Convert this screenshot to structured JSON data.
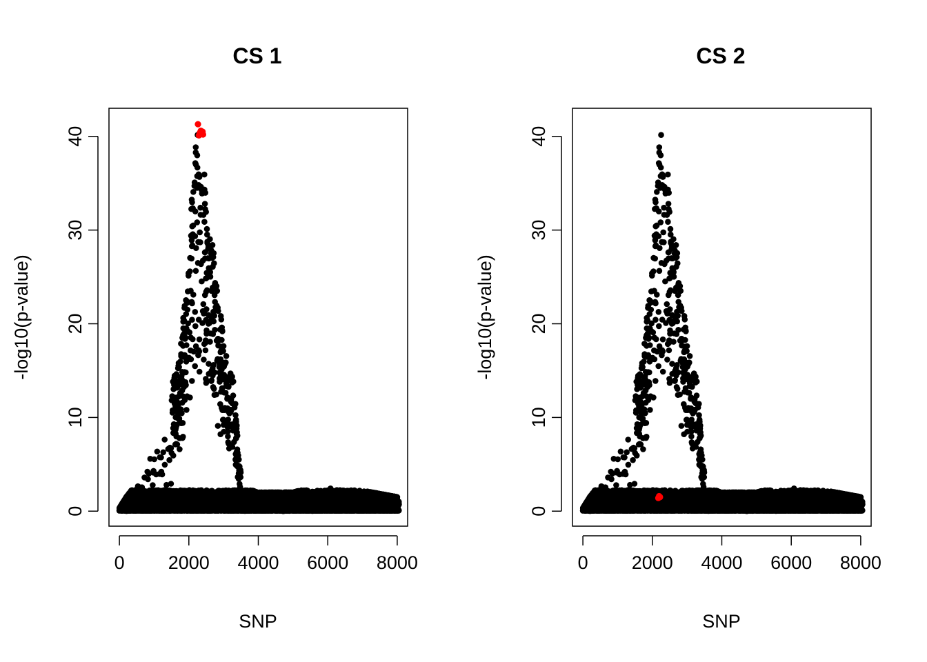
{
  "figure": {
    "background": "#ffffff",
    "point_color": "#000000",
    "highlight_color": "#ff0000"
  },
  "chart_data": [
    {
      "type": "scatter",
      "title": "CS 1",
      "xlabel": "SNP",
      "ylabel": "-log10(p-value)",
      "xlim": [
        -300,
        8300
      ],
      "ylim": [
        -1.6,
        43
      ],
      "xticks": [
        0,
        2000,
        4000,
        6000,
        8000
      ],
      "yticks": [
        0,
        10,
        20,
        30,
        40
      ],
      "grid": false,
      "legend": "none",
      "series": [
        {
          "role": "background",
          "color": "#000000",
          "note_profile": [
            [
              0,
              0.3
            ],
            [
              200,
              1.5
            ],
            [
              500,
              3
            ],
            [
              700,
              6
            ],
            [
              1000,
              8
            ],
            [
              1400,
              12
            ],
            [
              1700,
              16
            ],
            [
              2000,
              26
            ],
            [
              2100,
              35
            ],
            [
              2250,
              41.3
            ],
            [
              2400,
              40
            ],
            [
              2500,
              32
            ],
            [
              2700,
              28.6
            ],
            [
              2900,
              21.6
            ],
            [
              3100,
              16
            ],
            [
              3300,
              14
            ],
            [
              3450,
              5
            ],
            [
              3600,
              2.5
            ],
            [
              4000,
              2
            ],
            [
              5000,
              2
            ],
            [
              6000,
              3.2
            ],
            [
              7000,
              2.2
            ],
            [
              8000,
              1.5
            ]
          ]
        },
        {
          "role": "credible-set",
          "color": "#ff0000",
          "points": [
            {
              "x": 2262,
              "y": 41.3
            },
            {
              "x": 2290,
              "y": 40.1
            },
            {
              "x": 2320,
              "y": 40.4
            },
            {
              "x": 2345,
              "y": 40.6
            },
            {
              "x": 2370,
              "y": 40.3
            },
            {
              "x": 2395,
              "y": 40.5
            },
            {
              "x": 2410,
              "y": 40.2
            }
          ]
        }
      ]
    },
    {
      "type": "scatter",
      "title": "CS 2",
      "xlabel": "SNP",
      "ylabel": "-log10(p-value)",
      "xlim": [
        -300,
        8300
      ],
      "ylim": [
        -1.6,
        43
      ],
      "xticks": [
        0,
        2000,
        4000,
        6000,
        8000
      ],
      "yticks": [
        0,
        10,
        20,
        30,
        40
      ],
      "grid": false,
      "legend": "none",
      "series": [
        {
          "role": "background",
          "color": "#000000"
        },
        {
          "role": "credible-set",
          "color": "#ff0000",
          "points": [
            {
              "x": 2170,
              "y": 1.4
            },
            {
              "x": 2195,
              "y": 1.6
            },
            {
              "x": 2220,
              "y": 1.5
            }
          ]
        }
      ]
    }
  ]
}
